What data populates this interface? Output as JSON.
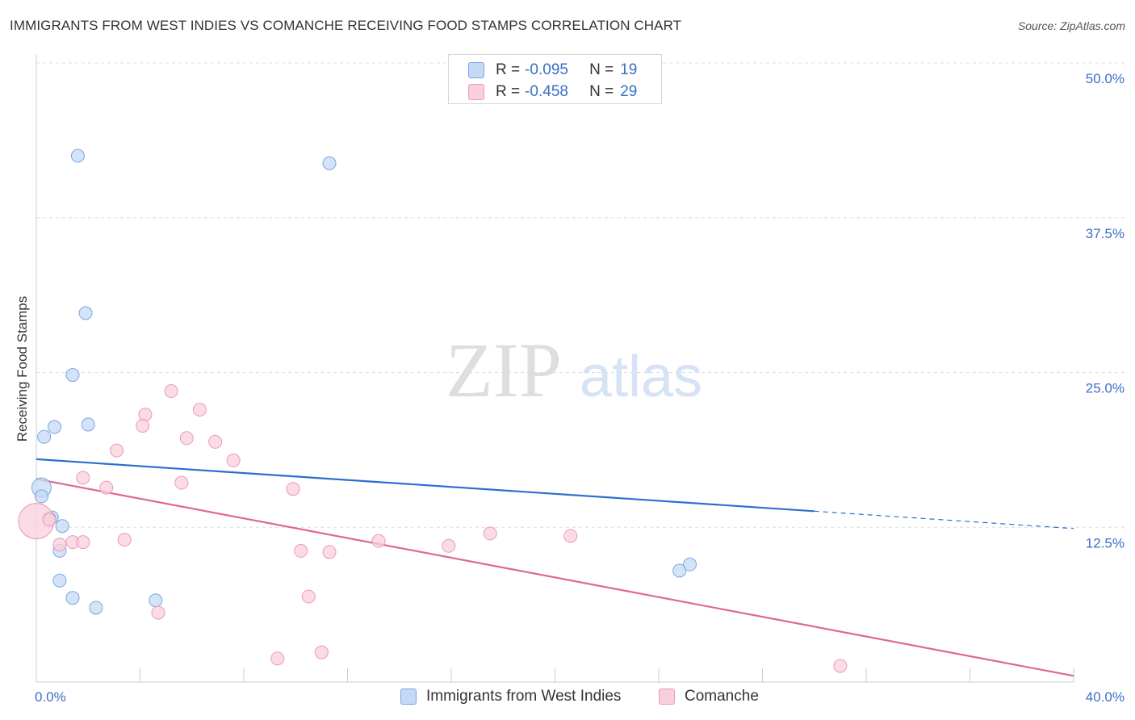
{
  "header": {
    "title": "IMMIGRANTS FROM WEST INDIES VS COMANCHE RECEIVING FOOD STAMPS CORRELATION CHART",
    "source": "Source: ZipAtlas.com"
  },
  "watermark": {
    "zip": "ZIP",
    "atlas": "atlas"
  },
  "colors": {
    "blue_fill": "#c5d9f4",
    "blue_stroke": "#7aa6e0",
    "blue_line": "#2b6fcf",
    "pink_fill": "#f9cfdc",
    "pink_stroke": "#ec9ab5",
    "pink_line": "#e0688f",
    "tick_label": "#3a6fc4",
    "grid": "#dddddd"
  },
  "legend": {
    "rows": [
      {
        "r_label": "R = ",
        "r_value": "-0.095",
        "n_label": "N = ",
        "n_value": "19"
      },
      {
        "r_label": "R = ",
        "r_value": "-0.458",
        "n_label": "N = ",
        "n_value": "29"
      }
    ],
    "bottom": [
      "Immigrants from West Indies",
      "Comanche"
    ]
  },
  "chart_data": {
    "type": "scatter",
    "title": "IMMIGRANTS FROM WEST INDIES VS COMANCHE RECEIVING FOOD STAMPS CORRELATION CHART",
    "xlabel": "",
    "ylabel": "Receiving Food Stamps",
    "xlim": [
      0,
      40
    ],
    "ylim": [
      0,
      50
    ],
    "x_tick_labels": [
      "0.0%",
      "40.0%"
    ],
    "y_ticks": [
      12.5,
      25.0,
      37.5,
      50.0
    ],
    "y_tick_labels": [
      "12.5%",
      "25.0%",
      "37.5%",
      "50.0%"
    ],
    "grid": true,
    "legend_position": "top-center",
    "series": [
      {
        "name": "Immigrants from West Indies",
        "color": "#7aa6e0",
        "points": [
          [
            1.6,
            42.5
          ],
          [
            11.3,
            41.9
          ],
          [
            1.9,
            29.8
          ],
          [
            1.4,
            24.8
          ],
          [
            0.7,
            20.6
          ],
          [
            2.0,
            20.8
          ],
          [
            0.3,
            19.8
          ],
          [
            0.2,
            15.7
          ],
          [
            0.2,
            15.0
          ],
          [
            0.6,
            13.3
          ],
          [
            0.5,
            13.2
          ],
          [
            1.0,
            12.6
          ],
          [
            0.9,
            10.6
          ],
          [
            0.9,
            8.2
          ],
          [
            1.4,
            6.8
          ],
          [
            2.3,
            6.0
          ],
          [
            4.6,
            6.6
          ],
          [
            24.8,
            9.0
          ],
          [
            25.2,
            9.5
          ]
        ],
        "trend": {
          "x": [
            0,
            30
          ],
          "y": [
            18.0,
            13.8
          ]
        },
        "trend_extension": {
          "x": [
            30,
            40
          ],
          "y": [
            13.8,
            12.4
          ]
        }
      },
      {
        "name": "Comanche",
        "color": "#ec9ab5",
        "points": [
          [
            0.0,
            13.0
          ],
          [
            5.2,
            23.5
          ],
          [
            6.3,
            22.0
          ],
          [
            4.2,
            21.6
          ],
          [
            4.1,
            20.7
          ],
          [
            5.8,
            19.7
          ],
          [
            6.9,
            19.4
          ],
          [
            3.1,
            18.7
          ],
          [
            7.6,
            17.9
          ],
          [
            1.8,
            16.5
          ],
          [
            5.6,
            16.1
          ],
          [
            2.7,
            15.7
          ],
          [
            9.9,
            15.6
          ],
          [
            0.5,
            13.1
          ],
          [
            1.4,
            11.3
          ],
          [
            1.8,
            11.3
          ],
          [
            3.4,
            11.5
          ],
          [
            13.2,
            11.4
          ],
          [
            15.9,
            11.0
          ],
          [
            17.5,
            12.0
          ],
          [
            20.6,
            11.8
          ],
          [
            10.2,
            10.6
          ],
          [
            11.3,
            10.5
          ],
          [
            0.9,
            11.1
          ],
          [
            10.5,
            6.9
          ],
          [
            4.7,
            5.6
          ],
          [
            9.3,
            1.9
          ],
          [
            11.0,
            2.4
          ],
          [
            31.0,
            1.3
          ]
        ],
        "trend": {
          "x": [
            0,
            40
          ],
          "y": [
            16.4,
            0.5
          ]
        }
      }
    ]
  }
}
